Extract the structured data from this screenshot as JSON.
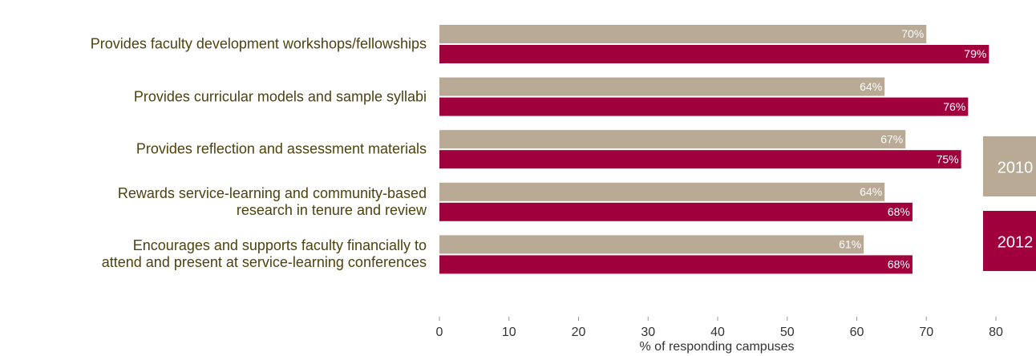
{
  "chart_data": {
    "type": "bar",
    "orientation": "horizontal",
    "categories": [
      "Provides faculty development workshops/fellowships",
      "Provides curricular models and sample syllabi",
      "Provides reflection and assessment materials",
      "Rewards service-learning and community-based\nresearch in tenure and review",
      "Encourages and supports faculty financially to\nattend and present at service-learning conferences"
    ],
    "series": [
      {
        "name": "2010",
        "color": "#b9aa96",
        "values": [
          70,
          64,
          67,
          64,
          61
        ],
        "value_labels": [
          "70%",
          "64%",
          "67%",
          "64%",
          "61%"
        ]
      },
      {
        "name": "2012",
        "color": "#a0003b",
        "values": [
          79,
          76,
          75,
          68,
          68
        ],
        "value_labels": [
          "79%",
          "76%",
          "75%",
          "68%",
          "68%"
        ]
      }
    ],
    "xlabel": "% of responding campuses",
    "xlim": [
      0,
      80
    ],
    "xticks": [
      0,
      10,
      20,
      30,
      40,
      50,
      60,
      70,
      80
    ],
    "legend": "right"
  }
}
